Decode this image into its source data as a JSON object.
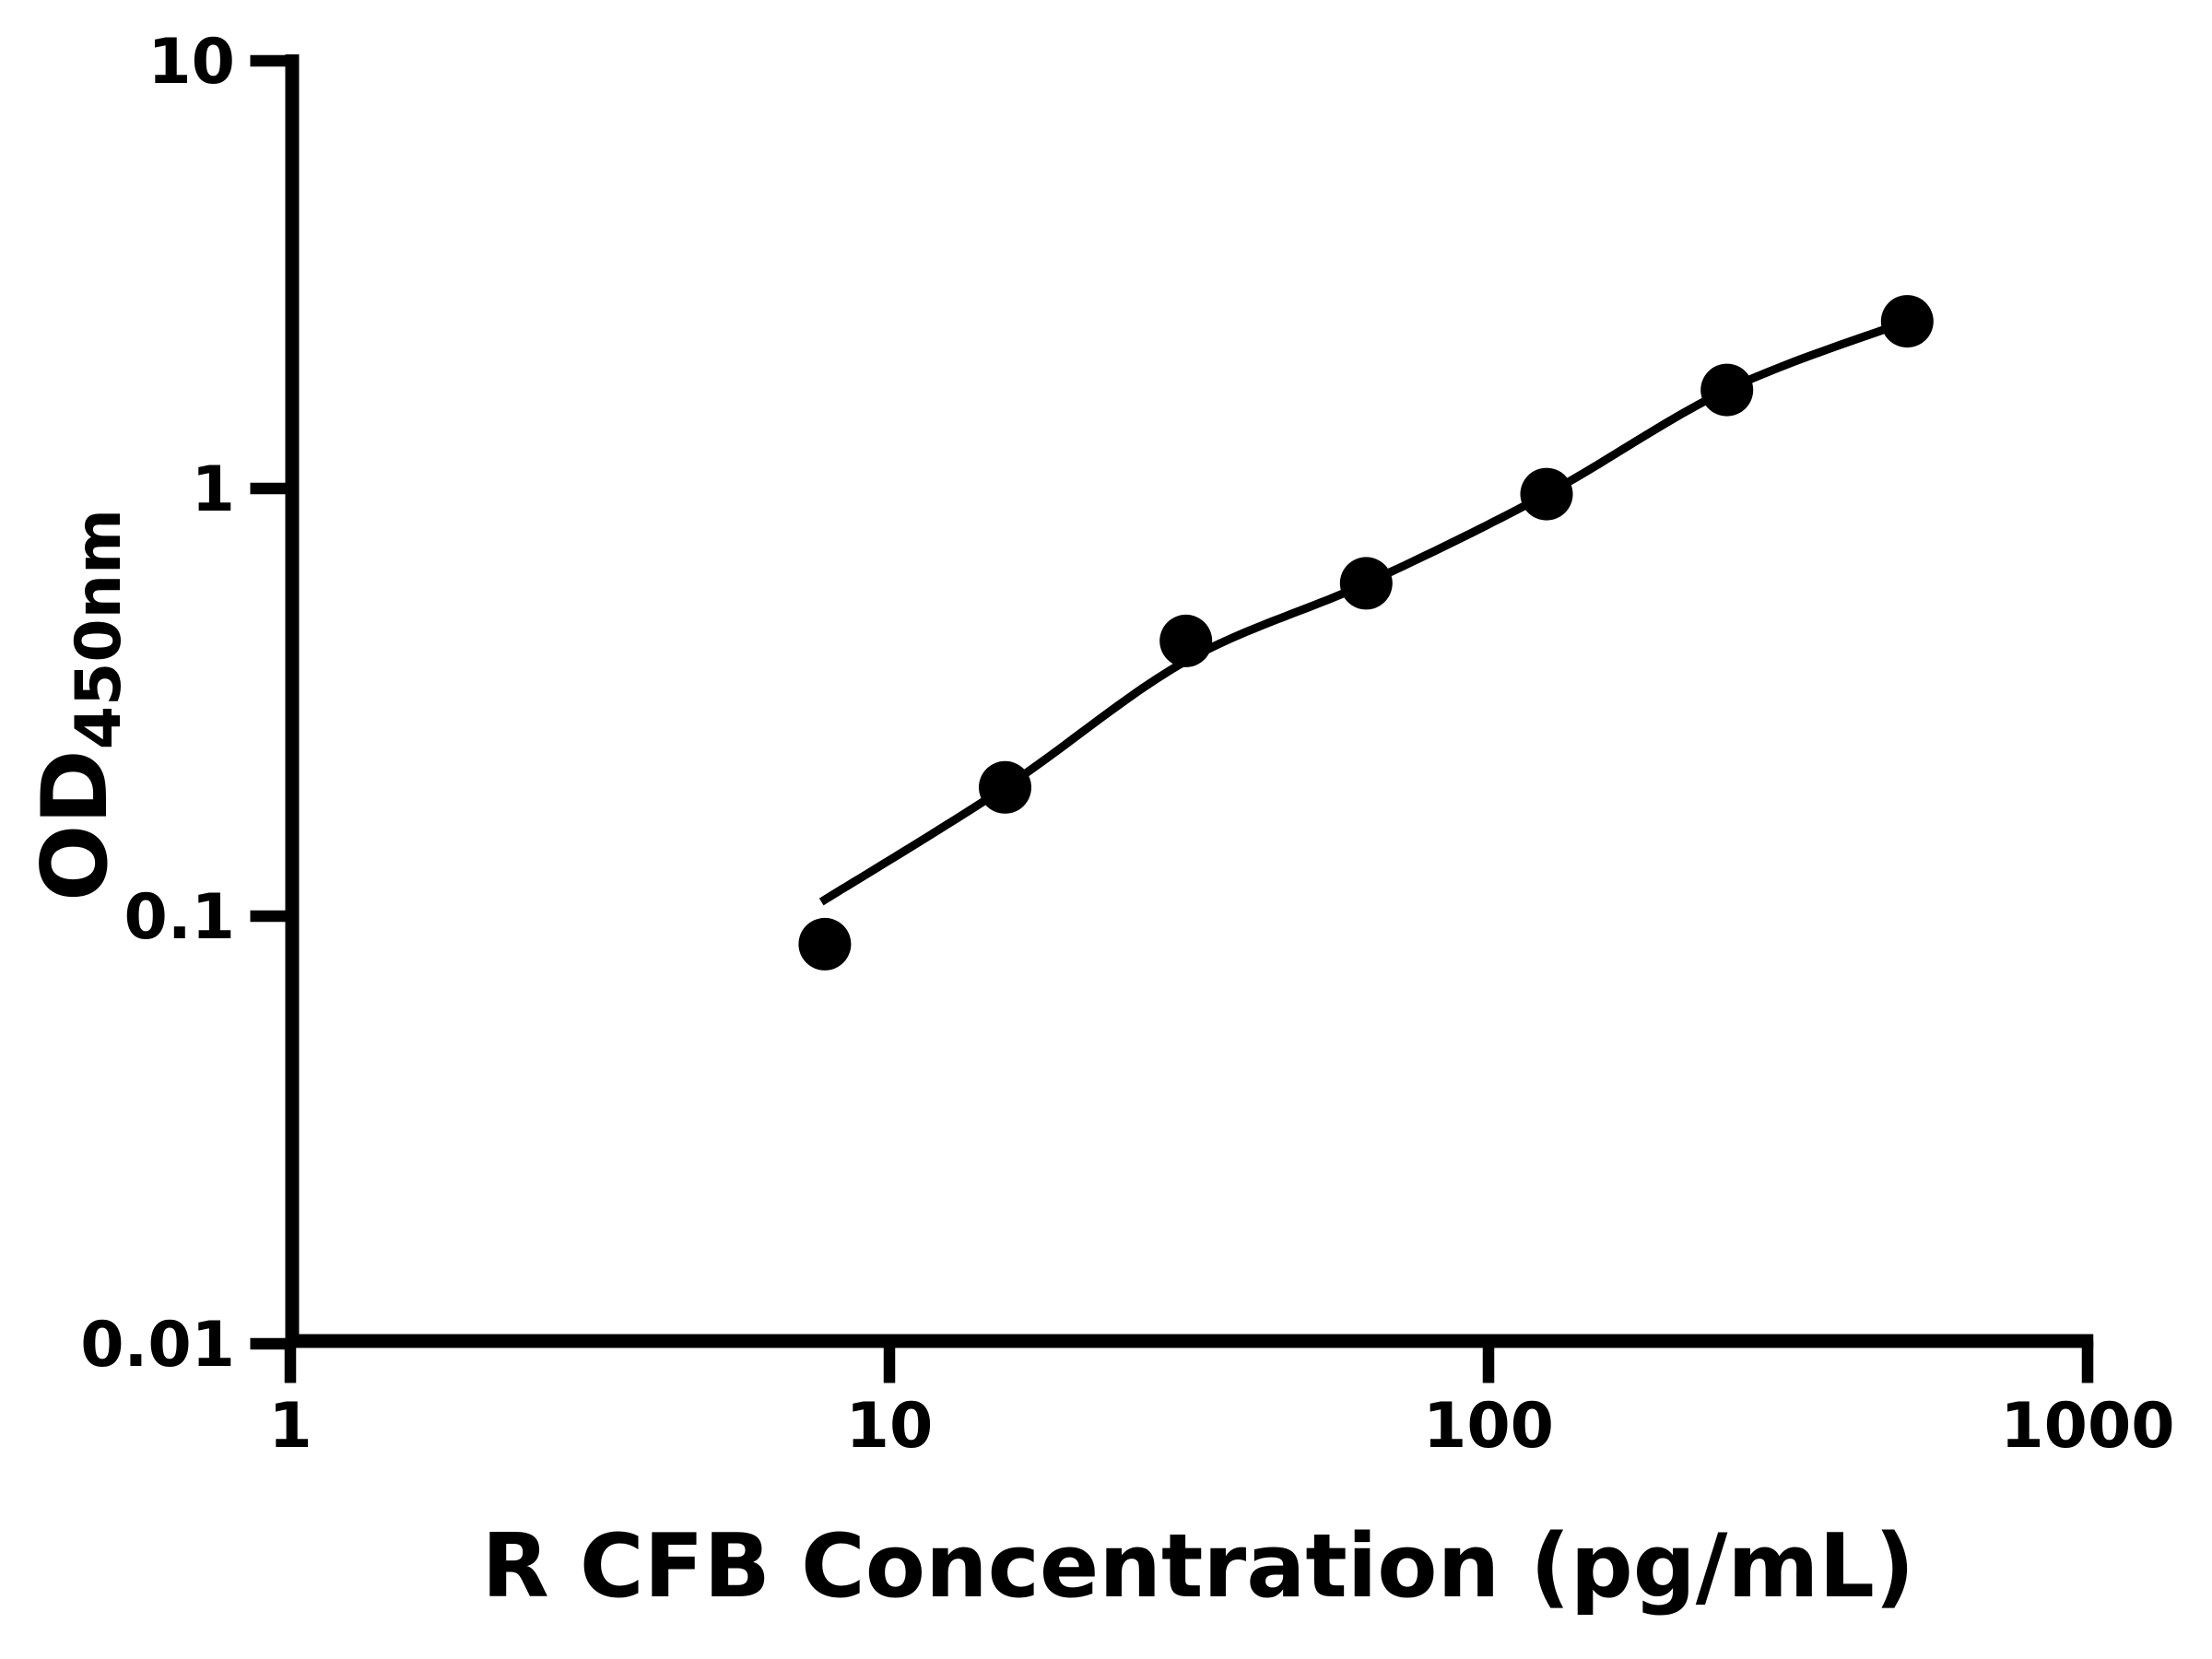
{
  "figure": {
    "background": "#ffffff",
    "ink_color": "#000000"
  },
  "chart_data": {
    "type": "scatter",
    "title": "",
    "xlabel": "R CFB Concentration (pg/mL)",
    "ylabel_main": "OD",
    "ylabel_sub": "450nm",
    "x_scale": "log",
    "y_scale": "log",
    "xlim": [
      1,
      1000
    ],
    "ylim": [
      0.01,
      10
    ],
    "grid": "off",
    "legend": "none",
    "x_ticks": [
      {
        "value": 1,
        "label": "1"
      },
      {
        "value": 10,
        "label": "10"
      },
      {
        "value": 100,
        "label": "100"
      },
      {
        "value": 1000,
        "label": "1000"
      }
    ],
    "y_ticks": [
      {
        "value": 10,
        "label": "10"
      },
      {
        "value": 1,
        "label": "1"
      },
      {
        "value": 0.1,
        "label": "0.1"
      },
      {
        "value": 0.01,
        "label": "0.01"
      }
    ],
    "series": [
      {
        "name": "standard-points",
        "marker": "circle",
        "color": "#000000",
        "points": [
          {
            "x": 7.8,
            "y": 0.086
          },
          {
            "x": 15.6,
            "y": 0.2
          },
          {
            "x": 31.25,
            "y": 0.44
          },
          {
            "x": 62.5,
            "y": 0.6
          },
          {
            "x": 125,
            "y": 0.97
          },
          {
            "x": 250,
            "y": 1.7
          },
          {
            "x": 500,
            "y": 2.46
          }
        ]
      }
    ],
    "fit_curve": {
      "name": "fitted-standard-curve",
      "color": "#000000",
      "points": [
        [
          7.7,
          0.108
        ],
        [
          15.6,
          0.2
        ],
        [
          31.25,
          0.395
        ],
        [
          62.5,
          0.6
        ],
        [
          125,
          0.97
        ],
        [
          250,
          1.7
        ],
        [
          500,
          2.46
        ]
      ]
    }
  }
}
